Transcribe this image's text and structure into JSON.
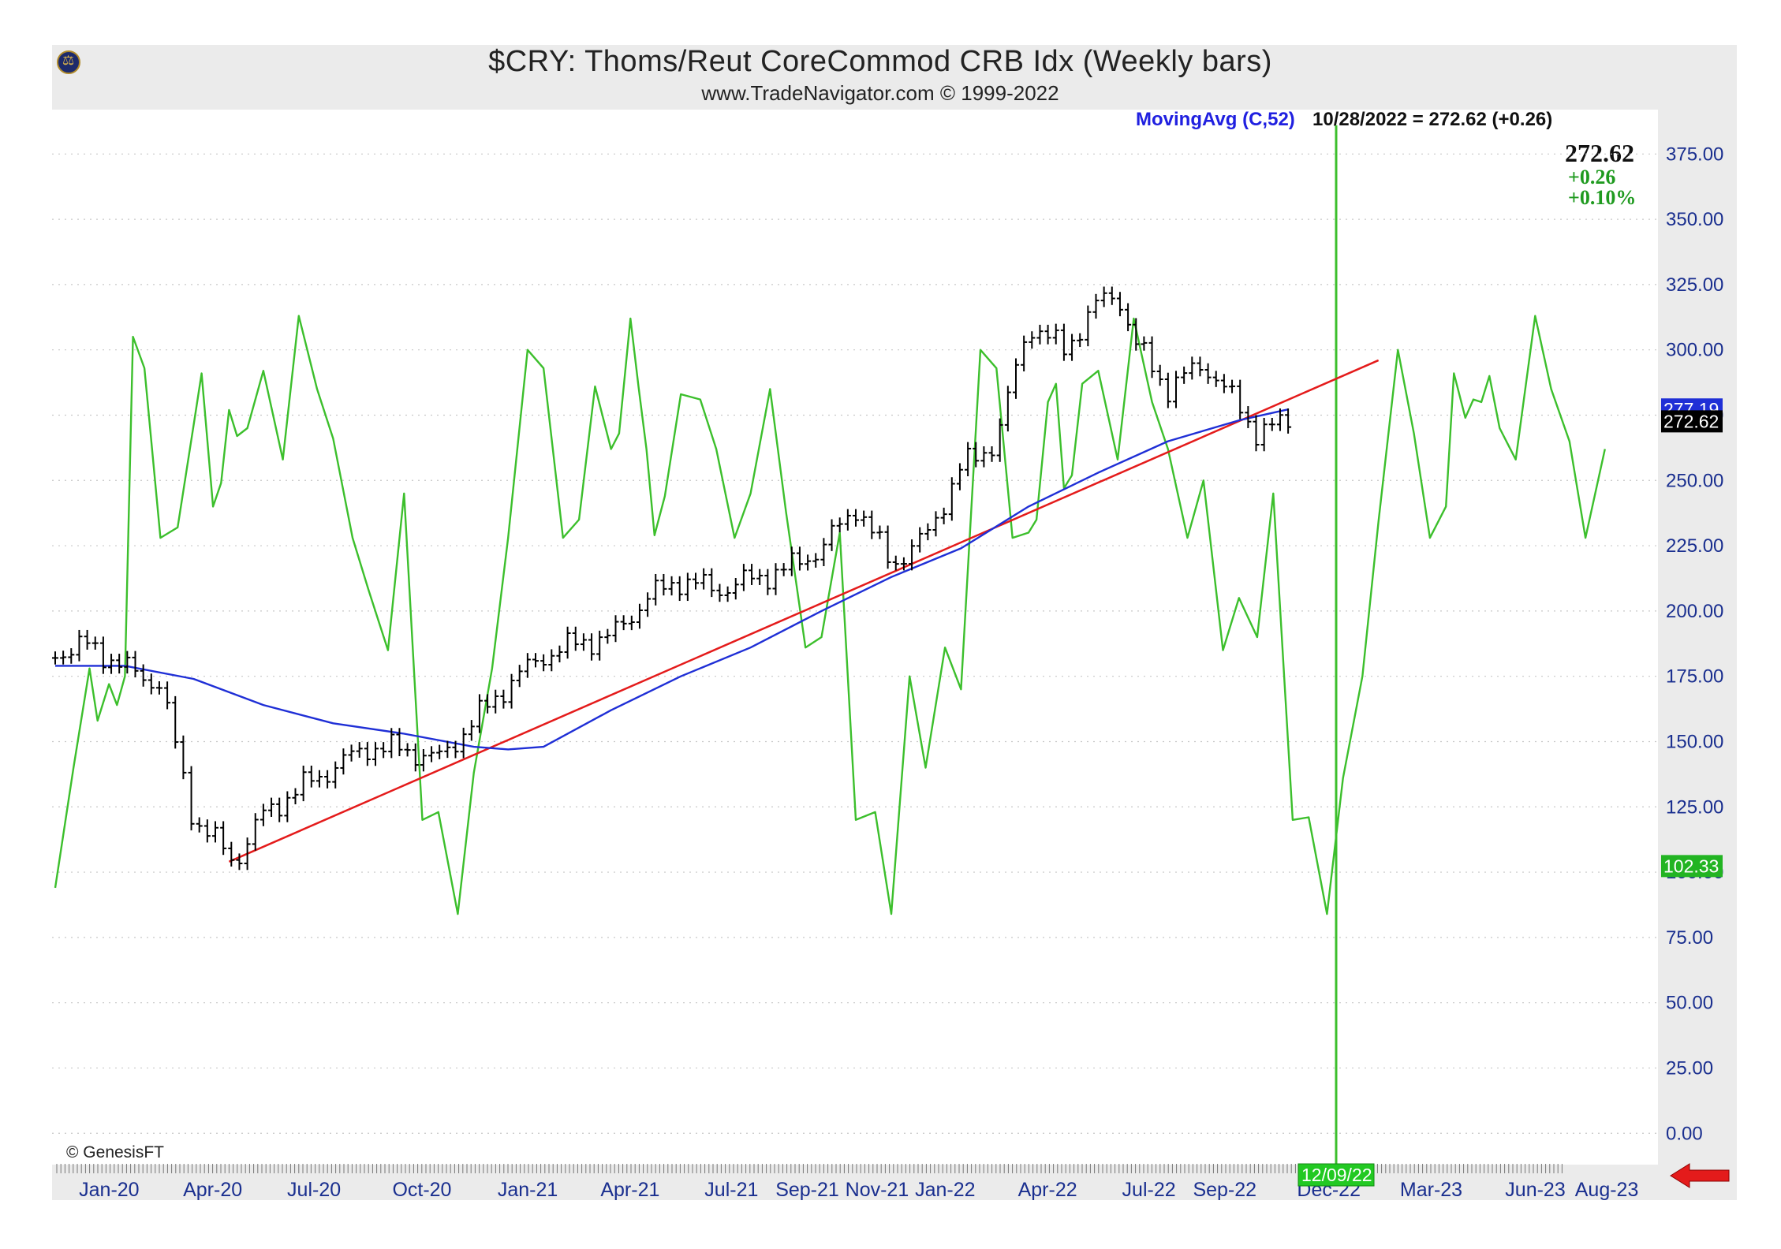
{
  "header": {
    "title": "$CRY:  Thoms/Reut CoreCommod CRB Idx  (Weekly bars)",
    "subtitle": "www.TradeNavigator.com © 1999-2022",
    "ma_label": "MovingAvg (C,52)",
    "ma_readout": "10/28/2022 = 272.62 (+0.26)",
    "last_price": "272.62",
    "last_change": "+0.26",
    "last_pct": "+0.10%",
    "credit": "© GenesisFT"
  },
  "colors": {
    "price_bars": "#000000",
    "moving_average": "#1f2fd6",
    "trendline": "#e41b1b",
    "cycle": "#3cbf2c",
    "cycle_marker": "#3cbf2c",
    "axis_text": "#1a2f8f",
    "arrow": "#e41b1b"
  },
  "chart_data": {
    "type": "line",
    "title": "$CRY:  Thoms/Reut CoreCommod CRB Idx  (Weekly bars)",
    "y_axis": {
      "ylim": [
        -12,
        392
      ],
      "ticks": [
        "375.00",
        "350.00",
        "325.00",
        "300.00",
        "275.00",
        "250.00",
        "225.00",
        "200.00",
        "175.00",
        "150.00",
        "125.00",
        "100.00",
        "75.00",
        "50.00",
        "25.00",
        "0.00"
      ],
      "tick_values": [
        375,
        350,
        325,
        300,
        275,
        250,
        225,
        200,
        175,
        150,
        125,
        100,
        75,
        50,
        25,
        0
      ],
      "grid": "dotted horizontal",
      "side": "right"
    },
    "x_axis": {
      "ticks": [
        "Jan-20",
        "Apr-20",
        "Jul-20",
        "Oct-20",
        "Jan-21",
        "Apr-21",
        "Jul-21",
        "Sep-21",
        "Nov-21",
        "Jan-22",
        "Apr-22",
        "Jul-22",
        "Sep-22",
        "Dec-22",
        "Mar-23",
        "Jun-23",
        "Aug-23"
      ],
      "tick_dates": [
        "2020-01-01",
        "2020-04-01",
        "2020-07-01",
        "2020-10-01",
        "2021-01-01",
        "2021-04-01",
        "2021-07-01",
        "2021-09-01",
        "2021-11-01",
        "2022-01-01",
        "2022-04-01",
        "2022-07-01",
        "2022-09-01",
        "2022-12-01",
        "2023-03-01",
        "2023-06-01",
        "2023-08-01"
      ],
      "xlim": [
        "2019-11-15",
        "2023-09-15"
      ]
    },
    "price_closes": {
      "name": "$CRY",
      "dates": [
        "2019-11-15",
        "2019-12-15",
        "2020-01-15",
        "2020-02-15",
        "2020-03-01",
        "2020-03-15",
        "2020-04-01",
        "2020-04-20",
        "2020-05-15",
        "2020-06-15",
        "2020-07-15",
        "2020-08-15",
        "2020-09-15",
        "2020-10-15",
        "2020-11-15",
        "2020-12-15",
        "2021-01-15",
        "2021-02-15",
        "2021-03-15",
        "2021-04-15",
        "2021-05-15",
        "2021-06-15",
        "2021-07-15",
        "2021-08-15",
        "2021-09-15",
        "2021-10-15",
        "2021-11-15",
        "2021-12-15",
        "2022-01-15",
        "2022-02-15",
        "2022-03-15",
        "2022-04-15",
        "2022-05-15",
        "2022-06-01",
        "2022-06-15",
        "2022-07-15",
        "2022-08-15",
        "2022-09-15",
        "2022-10-01",
        "2022-10-28"
      ],
      "values": [
        184,
        187,
        178,
        172,
        145,
        120,
        113,
        104,
        122,
        132,
        140,
        148,
        147,
        143,
        158,
        172,
        183,
        188,
        190,
        205,
        212,
        208,
        212,
        216,
        224,
        240,
        218,
        228,
        255,
        265,
        310,
        300,
        318,
        322,
        303,
        285,
        295,
        278,
        268,
        272.62
      ]
    },
    "moving_average": {
      "name": "MovingAvg (C,52)",
      "dates": [
        "2019-11-15",
        "2020-01-15",
        "2020-03-15",
        "2020-05-15",
        "2020-07-15",
        "2020-09-15",
        "2020-11-15",
        "2020-12-15",
        "2021-01-15",
        "2021-03-15",
        "2021-05-15",
        "2021-07-15",
        "2021-09-15",
        "2021-11-15",
        "2022-01-15",
        "2022-03-15",
        "2022-05-15",
        "2022-07-15",
        "2022-09-15",
        "2022-10-28"
      ],
      "values": [
        179,
        179,
        174,
        164,
        157,
        153,
        148,
        147,
        148,
        162,
        175,
        186,
        200,
        213,
        224,
        240,
        253,
        265,
        273,
        277.19
      ]
    },
    "trendline": {
      "dates": [
        "2020-04-15",
        "2023-01-15"
      ],
      "values": [
        104,
        296
      ]
    },
    "cycle": {
      "name": "Cycle",
      "dates": [
        "2019-11-15",
        "2019-12-01",
        "2019-12-15",
        "2019-12-22",
        "2020-01-01",
        "2020-01-08",
        "2020-01-15",
        "2020-01-22",
        "2020-02-01",
        "2020-02-15",
        "2020-03-01",
        "2020-03-15",
        "2020-03-22",
        "2020-04-01",
        "2020-04-08",
        "2020-04-15",
        "2020-04-22",
        "2020-05-01",
        "2020-05-15",
        "2020-06-01",
        "2020-06-15",
        "2020-07-01",
        "2020-07-15",
        "2020-08-01",
        "2020-08-15",
        "2020-09-01",
        "2020-09-15",
        "2020-10-01",
        "2020-10-15",
        "2020-11-01",
        "2020-11-15",
        "2020-12-01",
        "2020-12-15",
        "2021-01-01",
        "2021-01-15",
        "2021-02-01",
        "2021-02-15",
        "2021-03-01",
        "2021-03-15",
        "2021-03-22",
        "2021-04-01",
        "2021-04-08",
        "2021-04-15",
        "2021-04-22",
        "2021-05-01",
        "2021-05-15",
        "2021-06-01",
        "2021-06-15",
        "2021-07-01",
        "2021-07-15",
        "2021-08-01",
        "2021-08-15",
        "2021-09-01",
        "2021-09-15",
        "2021-10-01",
        "2021-10-15",
        "2021-11-01",
        "2021-11-15",
        "2021-12-01",
        "2021-12-15",
        "2022-01-01",
        "2022-01-15",
        "2022-02-01",
        "2022-02-15",
        "2022-03-01",
        "2022-03-15",
        "2022-03-22",
        "2022-04-01",
        "2022-04-08",
        "2022-04-15",
        "2022-04-22",
        "2022-05-01",
        "2022-05-15",
        "2022-06-01",
        "2022-06-15",
        "2022-07-01",
        "2022-07-15",
        "2022-08-01",
        "2022-08-15",
        "2022-09-01",
        "2022-09-15",
        "2022-10-01",
        "2022-10-15",
        "2022-11-01",
        "2022-11-15",
        "2022-12-01",
        "2022-12-15",
        "2023-01-01",
        "2023-01-15",
        "2023-02-01",
        "2023-02-15",
        "2023-03-01",
        "2023-03-15",
        "2023-03-22",
        "2023-04-01",
        "2023-04-08",
        "2023-04-15",
        "2023-04-22",
        "2023-05-01",
        "2023-05-15",
        "2023-06-01",
        "2023-06-15",
        "2023-07-01",
        "2023-07-15",
        "2023-08-01"
      ],
      "values": [
        94,
        140,
        178,
        158,
        172,
        164,
        175,
        305,
        293,
        228,
        232,
        271,
        291,
        240,
        249,
        277,
        267,
        270,
        292,
        258,
        313,
        285,
        266,
        228,
        208,
        185,
        245,
        120,
        123,
        84,
        138,
        178,
        228,
        300,
        293,
        228,
        235,
        286,
        262,
        268,
        312,
        286,
        262,
        229,
        244,
        283,
        281,
        262,
        228,
        245,
        285,
        238,
        186,
        190,
        230,
        120,
        123,
        84,
        175,
        140,
        186,
        170,
        300,
        293,
        228,
        230,
        235,
        280,
        287,
        247,
        252,
        287,
        292,
        258,
        312,
        280,
        262,
        228,
        250,
        185,
        205,
        190,
        245,
        120,
        121,
        84,
        136,
        175,
        234,
        300,
        268,
        228,
        240,
        291,
        274,
        281,
        280,
        290,
        270,
        258,
        313,
        285,
        265,
        228,
        262
      ]
    },
    "cycle_marker": {
      "date": "2022-12-09",
      "label": "12/09/22"
    },
    "value_tags": {
      "moving_average": "277.19",
      "price": "272.62",
      "cycle": "102.33"
    }
  }
}
